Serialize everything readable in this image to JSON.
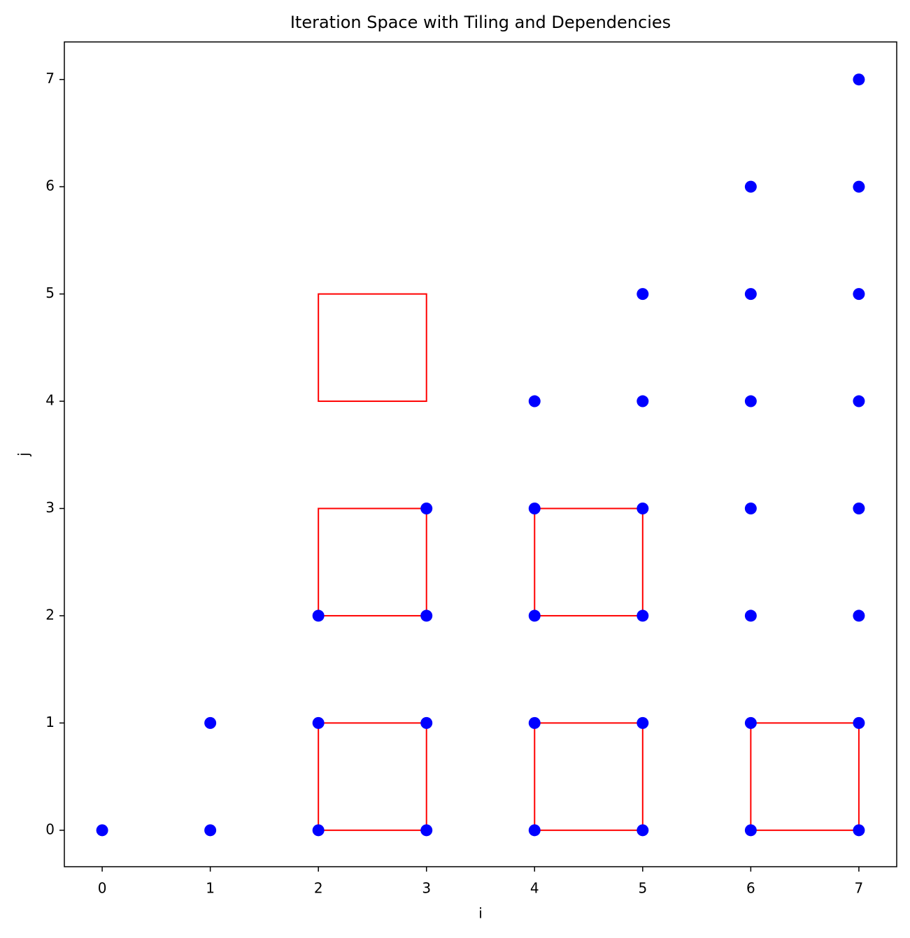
{
  "chart_data": {
    "type": "scatter",
    "title": "Iteration Space with Tiling and Dependencies",
    "x_label": "i",
    "y_label": "j",
    "x": [
      0,
      1,
      1,
      2,
      2,
      2,
      3,
      3,
      3,
      3,
      4,
      4,
      4,
      4,
      4,
      5,
      5,
      5,
      5,
      5,
      5,
      6,
      6,
      6,
      6,
      6,
      6,
      6,
      7,
      7,
      7,
      7,
      7,
      7,
      7,
      7
    ],
    "values": [
      0,
      0,
      1,
      0,
      1,
      2,
      0,
      1,
      2,
      3,
      0,
      1,
      2,
      3,
      4,
      0,
      1,
      2,
      3,
      4,
      5,
      0,
      1,
      2,
      3,
      4,
      5,
      6,
      0,
      1,
      2,
      3,
      4,
      5,
      6,
      7
    ],
    "color": "#0000ff",
    "rectangles": [
      {
        "x": 2,
        "y": 0,
        "width": 1,
        "height": 1
      },
      {
        "x": 4,
        "y": 0,
        "width": 1,
        "height": 1
      },
      {
        "x": 6,
        "y": 0,
        "width": 1,
        "height": 1
      },
      {
        "x": 2,
        "y": 2,
        "width": 1,
        "height": 1
      },
      {
        "x": 4,
        "y": 2,
        "width": 1,
        "height": 1
      },
      {
        "x": 2,
        "y": 4,
        "width": 1,
        "height": 1
      }
    ],
    "rectangle_color": "#ff0000",
    "xlim": [
      -0.35,
      7.35
    ],
    "ylim": [
      -0.34,
      7.35
    ],
    "xticks": [
      0,
      1,
      2,
      3,
      4,
      5,
      6,
      7
    ],
    "yticks": [
      0,
      1,
      2,
      3,
      4,
      5,
      6,
      7
    ]
  }
}
